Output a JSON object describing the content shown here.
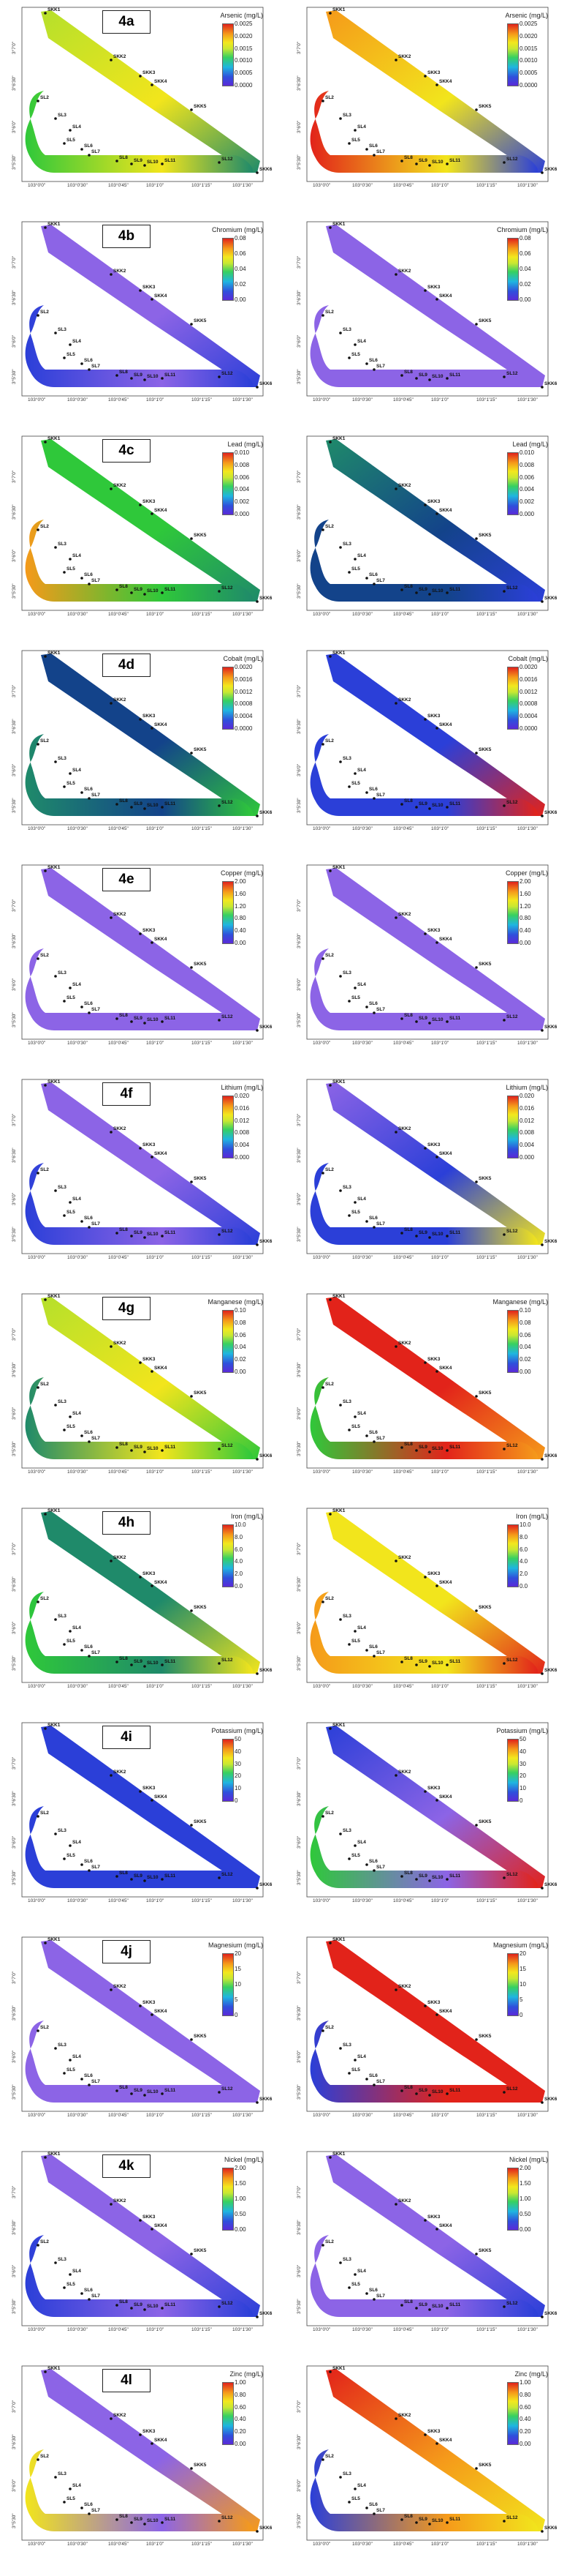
{
  "axes": {
    "x_ticks": [
      "103°0'0\"",
      "103°0'30\"",
      "103°0'45\"",
      "103°1'0\"",
      "103°1'15\"",
      "103°1'30\""
    ],
    "y_ticks": [
      "3°7'0\"",
      "3°6'30\"",
      "3°6'0\"",
      "3°5'30\""
    ]
  },
  "stations": {
    "top": [
      "SKK1",
      "SKK2",
      "SKK3",
      "SKK4",
      "SKK5"
    ],
    "bottom": [
      "SL2",
      "SL3",
      "SL4",
      "SL5",
      "SL6",
      "SL7",
      "SL8",
      "SL9",
      "SL10",
      "SL11",
      "SL12",
      "SKK6"
    ]
  },
  "colors": {
    "violet": "#8c64e6",
    "blue": "#2b3fd8",
    "navy": "#13438a",
    "teal": "#1f8a6a",
    "green": "#2fc83a",
    "lime": "#b5e02b",
    "yellow": "#f2e51c",
    "orange": "#f59a1a",
    "red": "#e2231a"
  },
  "rows": [
    {
      "label": "4a",
      "left_title": "Arsenic (mg/L)",
      "right_title": "Arsenic (mg/L)",
      "left_ticks": [
        "0.0025",
        "0.0020",
        "0.0015",
        "0.0010",
        "0.0005",
        "0.0000"
      ],
      "right_ticks": [
        "0.0025",
        "0.0020",
        "0.0015",
        "0.0010",
        "0.0005",
        "0.0000"
      ],
      "left_fill": [
        "lime",
        "yellow",
        "green",
        "teal"
      ],
      "right_fill": [
        "orange",
        "yellow",
        "red",
        "blue"
      ]
    },
    {
      "label": "4b",
      "left_title": "Chromium (mg/L)",
      "right_title": "Chromium (mg/L)",
      "left_ticks": [
        "0.08",
        "0.06",
        "0.04",
        "0.02",
        "0.00"
      ],
      "right_ticks": [
        "0.08",
        "0.06",
        "0.04",
        "0.02",
        "0.00"
      ],
      "left_fill": [
        "violet",
        "violet",
        "blue",
        "blue"
      ],
      "right_fill": [
        "violet",
        "violet",
        "violet",
        "violet"
      ]
    },
    {
      "label": "4c",
      "left_title": "Lead (mg/L)",
      "right_title": "Lead (mg/L)",
      "left_ticks": [
        "0.010",
        "0.008",
        "0.006",
        "0.004",
        "0.002",
        "0.000"
      ],
      "right_ticks": [
        "0.010",
        "0.008",
        "0.006",
        "0.004",
        "0.002",
        "0.000"
      ],
      "left_fill": [
        "green",
        "green",
        "orange",
        "teal"
      ],
      "right_fill": [
        "teal",
        "navy",
        "navy",
        "blue"
      ]
    },
    {
      "label": "4d",
      "left_title": "Cobalt (mg/L)",
      "right_title": "Cobalt (mg/L)",
      "left_ticks": [
        "0.0020",
        "0.0016",
        "0.0012",
        "0.0008",
        "0.0004",
        "0.0000"
      ],
      "right_ticks": [
        "0.0020",
        "0.0016",
        "0.0012",
        "0.0008",
        "0.0004",
        "0.0000"
      ],
      "left_fill": [
        "navy",
        "navy",
        "teal",
        "green"
      ],
      "right_fill": [
        "blue",
        "blue",
        "blue",
        "red"
      ]
    },
    {
      "label": "4e",
      "left_title": "Copper (mg/L)",
      "right_title": "Copper (mg/L)",
      "left_ticks": [
        "2.00",
        "1.60",
        "1.20",
        "0.80",
        "0.40",
        "0.00"
      ],
      "right_ticks": [
        "2.00",
        "1.60",
        "1.20",
        "0.80",
        "0.40",
        "0.00"
      ],
      "left_fill": [
        "violet",
        "violet",
        "violet",
        "violet"
      ],
      "right_fill": [
        "violet",
        "violet",
        "violet",
        "violet"
      ]
    },
    {
      "label": "4f",
      "left_title": "Lithium (mg/L)",
      "right_title": "Lithium (mg/L)",
      "left_ticks": [
        "0.020",
        "0.016",
        "0.012",
        "0.008",
        "0.004",
        "0.000"
      ],
      "right_ticks": [
        "0.020",
        "0.016",
        "0.012",
        "0.008",
        "0.004",
        "0.000"
      ],
      "left_fill": [
        "violet",
        "violet",
        "blue",
        "blue"
      ],
      "right_fill": [
        "violet",
        "blue",
        "blue",
        "yellow"
      ]
    },
    {
      "label": "4g",
      "left_title": "Manganese (mg/L)",
      "right_title": "Manganese (mg/L)",
      "left_ticks": [
        "0.10",
        "0.08",
        "0.06",
        "0.04",
        "0.02",
        "0.00"
      ],
      "right_ticks": [
        "0.10",
        "0.08",
        "0.06",
        "0.04",
        "0.02",
        "0.00"
      ],
      "left_fill": [
        "lime",
        "yellow",
        "teal",
        "green"
      ],
      "right_fill": [
        "red",
        "red",
        "green",
        "orange"
      ]
    },
    {
      "label": "4h",
      "left_title": "Iron (mg/L)",
      "right_title": "Iron (mg/L)",
      "left_ticks": [
        "10.0",
        "8.0",
        "6.0",
        "4.0",
        "2.0",
        "0.0"
      ],
      "right_ticks": [
        "10.0",
        "8.0",
        "6.0",
        "4.0",
        "2.0",
        "0.0"
      ],
      "left_fill": [
        "teal",
        "teal",
        "green",
        "yellow"
      ],
      "right_fill": [
        "yellow",
        "yellow",
        "orange",
        "red"
      ]
    },
    {
      "label": "4i",
      "left_title": "Potassium (mg/L)",
      "right_title": "Potassium (mg/L)",
      "left_ticks": [
        "50",
        "40",
        "30",
        "20",
        "10",
        "0"
      ],
      "right_ticks": [
        "50",
        "40",
        "30",
        "20",
        "10",
        "0"
      ],
      "left_fill": [
        "blue",
        "blue",
        "blue",
        "blue"
      ],
      "right_fill": [
        "blue",
        "violet",
        "green",
        "red"
      ]
    },
    {
      "label": "4j",
      "left_title": "Magnesium (mg/L)",
      "right_title": "Magnesium (mg/L)",
      "left_ticks": [
        "20",
        "15",
        "10",
        "5",
        "0"
      ],
      "right_ticks": [
        "20",
        "15",
        "10",
        "5",
        "0"
      ],
      "left_fill": [
        "violet",
        "violet",
        "violet",
        "violet"
      ],
      "right_fill": [
        "red",
        "red",
        "blue",
        "red"
      ]
    },
    {
      "label": "4k",
      "left_title": "Nickel (mg/L)",
      "right_title": "Nickel (mg/L)",
      "left_ticks": [
        "2.00",
        "1.50",
        "1.00",
        "0.50",
        "0.00"
      ],
      "right_ticks": [
        "2.00",
        "1.50",
        "1.00",
        "0.50",
        "0.00"
      ],
      "left_fill": [
        "violet",
        "violet",
        "blue",
        "blue"
      ],
      "right_fill": [
        "violet",
        "violet",
        "violet",
        "blue"
      ]
    },
    {
      "label": "4l",
      "left_title": "Zinc (mg/L)",
      "right_title": "Zinc (mg/L)",
      "left_ticks": [
        "1.00",
        "0.80",
        "0.60",
        "0.40",
        "0.20",
        "0.00"
      ],
      "right_ticks": [
        "1.00",
        "0.80",
        "0.60",
        "0.40",
        "0.20",
        "0.00"
      ],
      "left_fill": [
        "violet",
        "violet",
        "yellow",
        "orange"
      ],
      "right_fill": [
        "red",
        "orange",
        "blue",
        "yellow"
      ]
    }
  ]
}
